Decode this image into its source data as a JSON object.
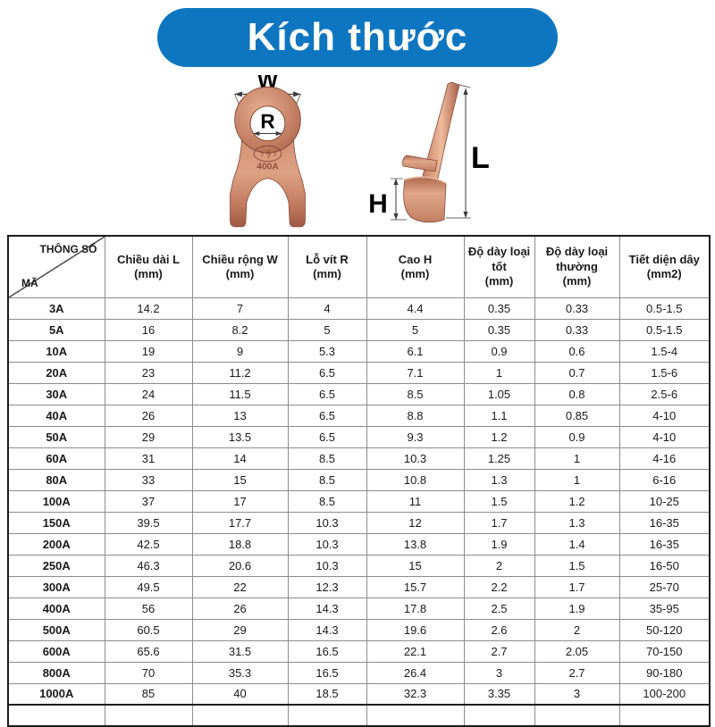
{
  "header": {
    "title": "Kích thước",
    "pill_color": "#0e76c0",
    "text_color": "#ffffff"
  },
  "diagram": {
    "front_view": {
      "width_label": "W",
      "hole_label": "R",
      "stamp_text": "400A"
    },
    "side_view": {
      "length_label": "L",
      "height_label": "H"
    }
  },
  "table": {
    "corner_top": "THÔNG SỐ",
    "corner_bottom": "MÃ",
    "columns": [
      {
        "label": "Chiều dài L",
        "unit": "(mm)"
      },
      {
        "label": "Chiều rộng W",
        "unit": "(mm)"
      },
      {
        "label": "Lỗ vít R",
        "unit": "(mm)"
      },
      {
        "label": "Cao H",
        "unit": "(mm)"
      },
      {
        "label": "Độ dày loại tốt",
        "unit": "(mm)"
      },
      {
        "label": "Độ dày loại thường",
        "unit": "(mm)"
      },
      {
        "label": "Tiết diện dây",
        "unit": "(mm2)"
      }
    ],
    "rows": [
      {
        "code": "3A",
        "values": [
          "14.2",
          "7",
          "4",
          "4.4",
          "0.35",
          "0.33",
          "0.5-1.5"
        ]
      },
      {
        "code": "5A",
        "values": [
          "16",
          "8.2",
          "5",
          "5",
          "0.35",
          "0.33",
          "0.5-1.5"
        ]
      },
      {
        "code": "10A",
        "values": [
          "19",
          "9",
          "5.3",
          "6.1",
          "0.9",
          "0.6",
          "1.5-4"
        ]
      },
      {
        "code": "20A",
        "values": [
          "23",
          "11.2",
          "6.5",
          "7.1",
          "1",
          "0.7",
          "1.5-6"
        ]
      },
      {
        "code": "30A",
        "values": [
          "24",
          "11.5",
          "6.5",
          "8.5",
          "1.05",
          "0.8",
          "2.5-6"
        ]
      },
      {
        "code": "40A",
        "values": [
          "26",
          "13",
          "6.5",
          "8.8",
          "1.1",
          "0.85",
          "4-10"
        ]
      },
      {
        "code": "50A",
        "values": [
          "29",
          "13.5",
          "6.5",
          "9.3",
          "1.2",
          "0.9",
          "4-10"
        ]
      },
      {
        "code": "60A",
        "values": [
          "31",
          "14",
          "8.5",
          "10.3",
          "1.25",
          "1",
          "4-16"
        ]
      },
      {
        "code": "80A",
        "values": [
          "33",
          "15",
          "8.5",
          "10.8",
          "1.3",
          "1",
          "6-16"
        ]
      },
      {
        "code": "100A",
        "values": [
          "37",
          "17",
          "8.5",
          "11",
          "1.5",
          "1.2",
          "10-25"
        ]
      },
      {
        "code": "150A",
        "values": [
          "39.5",
          "17.7",
          "10.3",
          "12",
          "1.7",
          "1.3",
          "16-35"
        ]
      },
      {
        "code": "200A",
        "values": [
          "42.5",
          "18.8",
          "10.3",
          "13.8",
          "1.9",
          "1.4",
          "16-35"
        ]
      },
      {
        "code": "250A",
        "values": [
          "46.3",
          "20.6",
          "10.3",
          "15",
          "2",
          "1.5",
          "16-50"
        ]
      },
      {
        "code": "300A",
        "values": [
          "49.5",
          "22",
          "12.3",
          "15.7",
          "2.2",
          "1.7",
          "25-70"
        ]
      },
      {
        "code": "400A",
        "values": [
          "56",
          "26",
          "14.3",
          "17.8",
          "2.5",
          "1.9",
          "35-95"
        ]
      },
      {
        "code": "500A",
        "values": [
          "60.5",
          "29",
          "14.3",
          "19.6",
          "2.6",
          "2",
          "50-120"
        ]
      },
      {
        "code": "600A",
        "values": [
          "65.6",
          "31.5",
          "16.5",
          "22.1",
          "2.7",
          "2.05",
          "70-150"
        ]
      },
      {
        "code": "800A",
        "values": [
          "70",
          "35.3",
          "16.5",
          "26.4",
          "3",
          "2.7",
          "90-180"
        ]
      },
      {
        "code": "1000A",
        "values": [
          "85",
          "40",
          "18.5",
          "32.3",
          "3.35",
          "3",
          "100-200"
        ]
      }
    ]
  }
}
